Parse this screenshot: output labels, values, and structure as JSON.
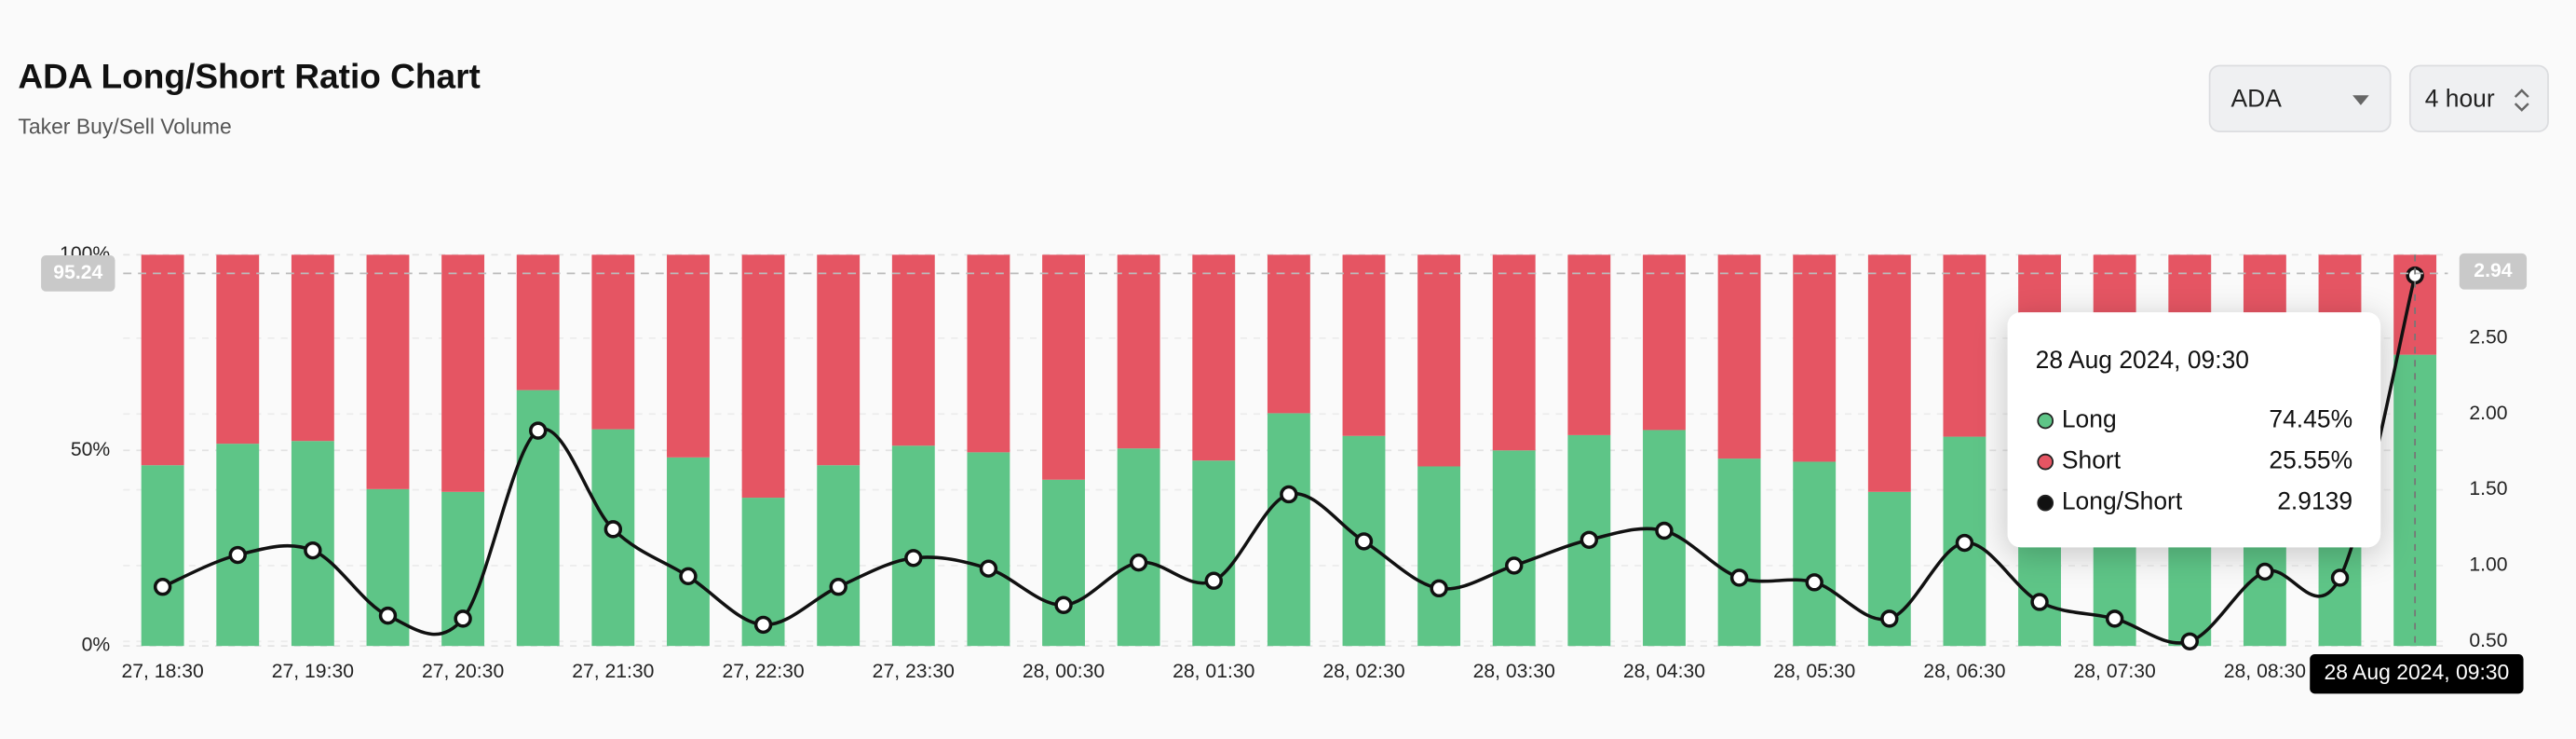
{
  "header": {
    "title": "ADA Long/Short Ratio Chart",
    "subtitle": "Taker Buy/Sell Volume"
  },
  "controls": {
    "symbol": "ADA",
    "interval": "4 hour"
  },
  "chart_data": {
    "type": "bar",
    "categories": [
      "27, 18:30",
      null,
      "27, 19:30",
      null,
      "27, 20:30",
      null,
      "27, 21:30",
      null,
      "27, 22:30",
      null,
      "27, 23:30",
      null,
      "28, 00:30",
      null,
      "28, 01:30",
      null,
      "28, 02:30",
      null,
      "28, 03:30",
      null,
      "28, 04:30",
      null,
      "28, 05:30",
      null,
      "28, 06:30",
      null,
      "28, 07:30",
      null,
      "28, 08:30",
      null,
      null
    ],
    "series": [
      {
        "name": "Long",
        "color": "#5ec587",
        "axis": "y",
        "values": [
          46.2,
          51.7,
          52.4,
          40.1,
          39.4,
          65.4,
          55.4,
          48.2,
          37.9,
          46.2,
          51.2,
          49.5,
          42.5,
          50.5,
          47.4,
          59.5,
          53.7,
          45.9,
          50.0,
          53.9,
          55.2,
          47.9,
          47.1,
          39.4,
          53.5,
          43.2,
          39.4,
          33.3,
          49.0,
          47.9,
          74.45
        ]
      },
      {
        "name": "Short",
        "color": "#e55563",
        "axis": "y",
        "values": [
          53.8,
          48.3,
          47.6,
          59.9,
          60.6,
          34.6,
          44.6,
          51.8,
          62.1,
          53.8,
          48.8,
          50.5,
          57.5,
          49.5,
          52.6,
          40.5,
          46.3,
          54.1,
          50.0,
          46.1,
          44.8,
          52.1,
          52.9,
          60.6,
          46.5,
          56.8,
          60.6,
          66.7,
          51.0,
          52.1,
          25.55
        ]
      },
      {
        "name": "Long/Short",
        "color": "#111111",
        "axis": "y2",
        "values": [
          0.86,
          1.07,
          1.1,
          0.67,
          0.65,
          1.89,
          1.24,
          0.93,
          0.61,
          0.86,
          1.05,
          0.98,
          0.74,
          1.02,
          0.9,
          1.47,
          1.16,
          0.85,
          1.0,
          1.17,
          1.23,
          0.92,
          0.89,
          0.65,
          1.15,
          0.76,
          0.65,
          0.5,
          0.96,
          0.92,
          2.9139
        ]
      }
    ],
    "ylim": [
      0,
      100
    ],
    "yticks": [
      {
        "value": 0,
        "label": "0%"
      },
      {
        "value": 50,
        "label": "50%"
      },
      {
        "value": 100,
        "label": "100%"
      }
    ],
    "y2lim": [
      0.47,
      3.05
    ],
    "y2ticks": [
      {
        "value": 0.5,
        "label": "0.50"
      },
      {
        "value": 1,
        "label": "1.00"
      },
      {
        "value": 1.5,
        "label": "1.50"
      },
      {
        "value": 2,
        "label": "2.00"
      },
      {
        "value": 2.5,
        "label": "2.50"
      }
    ],
    "grid": true,
    "crosshair": {
      "y": {
        "value": 95.24,
        "label": "95.24"
      },
      "y2": {
        "value": 2.94,
        "label": "2.94"
      },
      "x_label": "28 Aug 2024, 09:30"
    },
    "tooltip": {
      "title": "28 Aug 2024, 09:30",
      "items": [
        {
          "name": "Long",
          "value": "74.45%",
          "color": "#5ec587"
        },
        {
          "name": "Short",
          "value": "25.55%",
          "color": "#e55563"
        },
        {
          "name": "Long/Short",
          "value": "2.9139",
          "color": "#111111"
        }
      ]
    }
  }
}
